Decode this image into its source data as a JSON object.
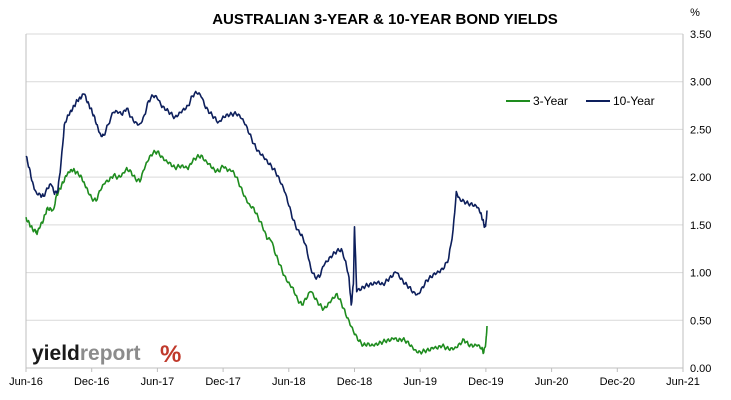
{
  "chart_data": {
    "type": "line",
    "title": "AUSTRALIAN 3-YEAR & 10-YEAR BOND YIELDS",
    "y_unit": "%",
    "ylim": [
      0,
      3.5
    ],
    "y_ticks": [
      "0.00",
      "0.50",
      "1.00",
      "1.50",
      "2.00",
      "2.50",
      "3.00",
      "3.50"
    ],
    "x_ticks": [
      "Jun-16",
      "Dec-16",
      "Jun-17",
      "Dec-17",
      "Jun-18",
      "Dec-18",
      "Jun-19",
      "Dec-19",
      "Jun-20",
      "Dec-20",
      "Jun-21"
    ],
    "grid": "horizontal",
    "legend_position": "top-right",
    "series": [
      {
        "name": "3-Year",
        "color": "#1e8c1e",
        "points": [
          [
            0,
            1.58
          ],
          [
            0.3,
            1.52
          ],
          [
            0.6,
            1.45
          ],
          [
            0.9,
            1.42
          ],
          [
            1.0,
            1.4
          ],
          [
            1.3,
            1.48
          ],
          [
            1.6,
            1.55
          ],
          [
            1.9,
            1.67
          ],
          [
            2.2,
            1.68
          ],
          [
            2.5,
            1.66
          ],
          [
            2.8,
            1.82
          ],
          [
            3.1,
            1.88
          ],
          [
            3.4,
            1.94
          ],
          [
            3.7,
            2.01
          ],
          [
            4.0,
            2.05
          ],
          [
            4.3,
            2.07
          ],
          [
            4.6,
            2.05
          ],
          [
            5.0,
            2.02
          ],
          [
            5.3,
            1.95
          ],
          [
            5.6,
            1.88
          ],
          [
            6.0,
            1.78
          ],
          [
            6.4,
            1.75
          ],
          [
            6.8,
            1.86
          ],
          [
            7.2,
            1.93
          ],
          [
            7.6,
            1.96
          ],
          [
            8.0,
            2.02
          ],
          [
            8.4,
            2.0
          ],
          [
            8.8,
            2.04
          ],
          [
            9.2,
            2.1
          ],
          [
            9.6,
            2.06
          ],
          [
            10.0,
            1.98
          ],
          [
            10.4,
            1.95
          ],
          [
            10.8,
            2.08
          ],
          [
            11.2,
            2.18
          ],
          [
            11.6,
            2.25
          ],
          [
            12.0,
            2.27
          ],
          [
            12.4,
            2.22
          ],
          [
            12.8,
            2.18
          ],
          [
            13.2,
            2.15
          ],
          [
            13.6,
            2.1
          ],
          [
            14.0,
            2.11
          ],
          [
            14.4,
            2.1
          ],
          [
            14.8,
            2.08
          ],
          [
            15.2,
            2.16
          ],
          [
            15.6,
            2.21
          ],
          [
            16.0,
            2.23
          ],
          [
            16.4,
            2.18
          ],
          [
            16.8,
            2.14
          ],
          [
            17.2,
            2.08
          ],
          [
            17.6,
            2.06
          ],
          [
            18.0,
            2.11
          ],
          [
            18.4,
            2.06
          ],
          [
            18.8,
            2.06
          ],
          [
            19.2,
            2.0
          ],
          [
            19.6,
            1.9
          ],
          [
            20.0,
            1.8
          ],
          [
            20.4,
            1.72
          ],
          [
            20.8,
            1.68
          ],
          [
            21.2,
            1.58
          ],
          [
            21.6,
            1.48
          ],
          [
            22.0,
            1.35
          ],
          [
            22.4,
            1.33
          ],
          [
            22.8,
            1.18
          ],
          [
            23.2,
            1.08
          ],
          [
            23.6,
            0.97
          ],
          [
            24.0,
            0.9
          ],
          [
            24.4,
            0.84
          ],
          [
            24.8,
            0.72
          ],
          [
            25.2,
            0.66
          ],
          [
            25.6,
            0.72
          ],
          [
            26.0,
            0.8
          ],
          [
            26.4,
            0.72
          ],
          [
            26.8,
            0.66
          ],
          [
            27.2,
            0.62
          ],
          [
            27.6,
            0.68
          ],
          [
            28.0,
            0.74
          ],
          [
            28.4,
            0.78
          ],
          [
            28.8,
            0.68
          ],
          [
            29.2,
            0.56
          ],
          [
            29.6,
            0.45
          ],
          [
            30.0,
            0.35
          ],
          [
            30.4,
            0.28
          ],
          [
            30.8,
            0.24
          ],
          [
            31.2,
            0.26
          ],
          [
            31.6,
            0.25
          ],
          [
            32.0,
            0.26
          ],
          [
            32.4,
            0.27
          ],
          [
            32.8,
            0.28
          ],
          [
            33.2,
            0.28
          ],
          [
            33.6,
            0.3
          ],
          [
            34.0,
            0.28
          ],
          [
            34.4,
            0.3
          ],
          [
            34.8,
            0.28
          ],
          [
            35.2,
            0.24
          ],
          [
            35.6,
            0.19
          ],
          [
            36.0,
            0.17
          ],
          [
            36.4,
            0.18
          ],
          [
            36.8,
            0.18
          ],
          [
            37.2,
            0.2
          ],
          [
            37.6,
            0.2
          ],
          [
            38.0,
            0.23
          ],
          [
            38.4,
            0.21
          ],
          [
            38.8,
            0.21
          ],
          [
            39.2,
            0.22
          ],
          [
            39.6,
            0.26
          ],
          [
            40.0,
            0.3
          ],
          [
            40.4,
            0.24
          ],
          [
            40.8,
            0.22
          ],
          [
            41.2,
            0.23
          ],
          [
            41.6,
            0.2
          ],
          [
            41.8,
            0.16
          ],
          [
            42.0,
            0.28
          ],
          [
            42.1,
            0.44
          ]
        ]
      },
      {
        "name": "10-Year",
        "color": "#0d1f5c",
        "points": [
          [
            0,
            2.22
          ],
          [
            0.3,
            2.1
          ],
          [
            0.6,
            1.95
          ],
          [
            0.9,
            1.85
          ],
          [
            1.3,
            1.82
          ],
          [
            1.6,
            1.8
          ],
          [
            2.0,
            1.88
          ],
          [
            2.3,
            1.92
          ],
          [
            2.6,
            1.82
          ],
          [
            2.9,
            1.85
          ],
          [
            3.2,
            2.15
          ],
          [
            3.5,
            2.55
          ],
          [
            3.8,
            2.65
          ],
          [
            4.1,
            2.7
          ],
          [
            4.4,
            2.75
          ],
          [
            4.7,
            2.8
          ],
          [
            5.0,
            2.82
          ],
          [
            5.3,
            2.87
          ],
          [
            5.6,
            2.78
          ],
          [
            5.9,
            2.72
          ],
          [
            6.2,
            2.65
          ],
          [
            6.5,
            2.55
          ],
          [
            6.8,
            2.45
          ],
          [
            7.1,
            2.44
          ],
          [
            7.5,
            2.55
          ],
          [
            8.0,
            2.68
          ],
          [
            8.4,
            2.67
          ],
          [
            8.8,
            2.65
          ],
          [
            9.2,
            2.72
          ],
          [
            9.6,
            2.63
          ],
          [
            10.0,
            2.58
          ],
          [
            10.4,
            2.56
          ],
          [
            10.8,
            2.65
          ],
          [
            11.2,
            2.8
          ],
          [
            11.6,
            2.85
          ],
          [
            12.0,
            2.82
          ],
          [
            12.4,
            2.73
          ],
          [
            12.8,
            2.7
          ],
          [
            13.2,
            2.67
          ],
          [
            13.6,
            2.63
          ],
          [
            14.0,
            2.68
          ],
          [
            14.4,
            2.72
          ],
          [
            14.8,
            2.75
          ],
          [
            15.2,
            2.85
          ],
          [
            15.6,
            2.88
          ],
          [
            16.0,
            2.84
          ],
          [
            16.4,
            2.72
          ],
          [
            16.8,
            2.67
          ],
          [
            17.2,
            2.63
          ],
          [
            17.6,
            2.58
          ],
          [
            18.0,
            2.64
          ],
          [
            18.4,
            2.66
          ],
          [
            18.8,
            2.66
          ],
          [
            19.2,
            2.66
          ],
          [
            19.6,
            2.62
          ],
          [
            20.0,
            2.55
          ],
          [
            20.4,
            2.45
          ],
          [
            20.8,
            2.35
          ],
          [
            21.2,
            2.28
          ],
          [
            21.6,
            2.24
          ],
          [
            22.0,
            2.18
          ],
          [
            22.4,
            2.12
          ],
          [
            22.8,
            2.05
          ],
          [
            23.2,
            1.95
          ],
          [
            23.6,
            1.85
          ],
          [
            24.0,
            1.7
          ],
          [
            24.4,
            1.55
          ],
          [
            24.8,
            1.45
          ],
          [
            25.2,
            1.4
          ],
          [
            25.6,
            1.28
          ],
          [
            26.0,
            1.05
          ],
          [
            26.4,
            0.95
          ],
          [
            26.8,
            0.95
          ],
          [
            27.2,
            1.07
          ],
          [
            27.6,
            1.12
          ],
          [
            28.0,
            1.18
          ],
          [
            28.4,
            1.23
          ],
          [
            28.8,
            1.25
          ],
          [
            29.2,
            1.12
          ],
          [
            29.5,
            0.95
          ],
          [
            29.7,
            0.66
          ],
          [
            29.9,
            0.88
          ],
          [
            30.0,
            1.48
          ],
          [
            30.2,
            0.8
          ],
          [
            30.6,
            0.82
          ],
          [
            31.0,
            0.86
          ],
          [
            31.4,
            0.88
          ],
          [
            31.8,
            0.9
          ],
          [
            32.2,
            0.91
          ],
          [
            32.6,
            0.88
          ],
          [
            33.0,
            0.92
          ],
          [
            33.4,
            0.95
          ],
          [
            33.8,
            1.0
          ],
          [
            34.2,
            0.93
          ],
          [
            34.6,
            0.88
          ],
          [
            35.0,
            0.85
          ],
          [
            35.4,
            0.8
          ],
          [
            35.8,
            0.78
          ],
          [
            36.2,
            0.85
          ],
          [
            36.6,
            0.92
          ],
          [
            37.0,
            0.95
          ],
          [
            37.4,
            0.98
          ],
          [
            37.8,
            1.0
          ],
          [
            38.2,
            1.05
          ],
          [
            38.6,
            1.15
          ],
          [
            39.0,
            1.45
          ],
          [
            39.3,
            1.85
          ],
          [
            39.6,
            1.78
          ],
          [
            40.0,
            1.75
          ],
          [
            40.4,
            1.72
          ],
          [
            40.8,
            1.7
          ],
          [
            41.2,
            1.68
          ],
          [
            41.5,
            1.62
          ],
          [
            41.7,
            1.55
          ],
          [
            41.9,
            1.48
          ],
          [
            42.0,
            1.52
          ],
          [
            42.1,
            1.65
          ]
        ]
      }
    ]
  },
  "logo": {
    "part1": "yield",
    "part2": "report",
    "symbol": "%"
  }
}
